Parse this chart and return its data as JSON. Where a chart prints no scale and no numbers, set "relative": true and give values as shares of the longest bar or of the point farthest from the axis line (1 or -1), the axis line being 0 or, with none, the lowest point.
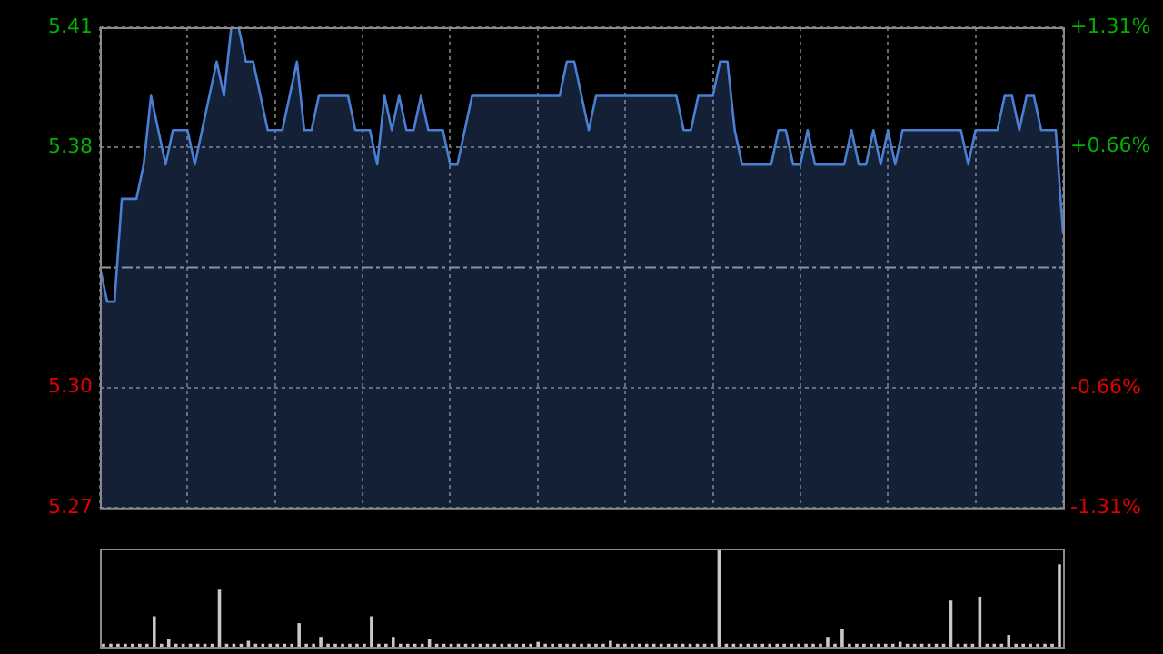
{
  "chart_data": [
    {
      "type": "area",
      "categories": [
        null,
        null,
        null,
        null,
        null,
        null,
        null,
        null,
        null,
        null,
        null,
        null,
        null,
        null,
        null,
        null,
        null,
        null,
        null,
        null,
        null,
        null,
        null,
        null,
        null,
        null,
        null,
        null,
        null,
        null,
        null,
        null,
        null,
        null,
        null,
        null,
        null,
        null,
        null,
        null,
        null,
        null,
        null,
        null,
        null,
        null,
        null,
        null,
        null,
        null,
        null,
        null,
        null,
        null,
        null,
        null,
        null,
        null,
        null,
        null,
        null,
        null,
        null,
        null,
        null,
        null,
        null,
        null,
        null,
        null,
        null,
        null,
        null,
        null,
        null,
        null,
        null,
        null,
        null,
        null,
        null,
        null,
        null,
        null,
        null,
        null,
        null,
        null,
        null,
        null,
        null,
        null,
        null,
        null,
        null,
        null,
        null,
        null,
        null,
        null,
        null,
        null,
        null,
        null,
        null,
        null,
        null,
        null,
        null,
        null,
        null,
        null,
        null,
        null,
        null,
        null,
        null,
        null,
        null,
        null,
        null,
        null,
        null,
        null,
        null,
        null,
        null,
        null,
        null,
        null,
        null,
        null,
        null
      ],
      "series": [
        {
          "color": "#4a7fd4",
          "values": [
            5.34,
            5.33,
            5.33,
            5.36,
            5.36,
            5.36,
            5.37,
            5.39,
            5.38,
            5.37,
            5.38,
            5.38,
            5.38,
            5.37,
            5.38,
            5.39,
            5.4,
            5.39,
            5.41,
            5.41,
            5.4,
            5.4,
            5.39,
            5.38,
            5.38,
            5.38,
            5.39,
            5.4,
            5.38,
            5.38,
            5.39,
            5.39,
            5.39,
            5.39,
            5.39,
            5.38,
            5.38,
            5.38,
            5.37,
            5.39,
            5.38,
            5.39,
            5.38,
            5.38,
            5.39,
            5.38,
            5.38,
            5.38,
            5.37,
            5.37,
            5.38,
            5.39,
            5.39,
            5.39,
            5.39,
            5.39,
            5.39,
            5.39,
            5.39,
            5.39,
            5.39,
            5.39,
            5.39,
            5.39,
            5.4,
            5.4,
            5.39,
            5.38,
            5.39,
            5.39,
            5.39,
            5.39,
            5.39,
            5.39,
            5.39,
            5.39,
            5.39,
            5.39,
            5.39,
            5.39,
            5.38,
            5.38,
            5.39,
            5.39,
            5.39,
            5.4,
            5.4,
            5.38,
            5.37,
            5.37,
            5.37,
            5.37,
            5.37,
            5.38,
            5.38,
            5.37,
            5.37,
            5.38,
            5.37,
            5.37,
            5.37,
            5.37,
            5.37,
            5.38,
            5.37,
            5.37,
            5.38,
            5.37,
            5.38,
            5.37,
            5.38,
            5.38,
            5.38,
            5.38,
            5.38,
            5.38,
            5.38,
            5.38,
            5.38,
            5.37,
            5.38,
            5.38,
            5.38,
            5.38,
            5.39,
            5.39,
            5.38,
            5.39,
            5.39,
            5.38,
            5.38,
            5.38,
            5.35
          ]
        }
      ],
      "ylim": [
        5.27,
        5.41
      ],
      "yticks": [
        5.41,
        {
          "value": 5.375,
          "label": "5.38"
        },
        {
          "value": 5.305,
          "label": "5.30"
        },
        5.27
      ],
      "y2lim": [
        -1.31,
        1.31
      ],
      "y2ticks": [
        {
          "value": 1.31,
          "label": "+1.31%"
        },
        {
          "value": 0.66,
          "label": "+0.66%"
        },
        {
          "value": -0.66,
          "label": "-0.66%"
        },
        {
          "value": -1.31,
          "label": "-1.31%"
        }
      ],
      "grid": true,
      "ref_lines": [
        {
          "axis": "y",
          "value": 5.34,
          "color": "#9a9a9a",
          "line_style": "dashed"
        }
      ]
    },
    {
      "type": "bar",
      "relative": true,
      "color": "#c8c8c8",
      "categories": [
        null,
        null,
        null,
        null,
        null,
        null,
        null,
        null,
        null,
        null,
        null,
        null,
        null,
        null,
        null,
        null,
        null,
        null,
        null,
        null,
        null,
        null,
        null,
        null,
        null,
        null,
        null,
        null,
        null,
        null,
        null,
        null,
        null,
        null,
        null,
        null,
        null,
        null,
        null,
        null,
        null,
        null,
        null,
        null,
        null,
        null,
        null,
        null,
        null,
        null,
        null,
        null,
        null,
        null,
        null,
        null,
        null,
        null,
        null,
        null,
        null,
        null,
        null,
        null,
        null,
        null,
        null,
        null,
        null,
        null,
        null,
        null,
        null,
        null,
        null,
        null,
        null,
        null,
        null,
        null,
        null,
        null,
        null,
        null,
        null,
        null,
        null,
        null,
        null,
        null,
        null,
        null,
        null,
        null,
        null,
        null,
        null,
        null,
        null,
        null,
        null,
        null,
        null,
        null,
        null,
        null,
        null,
        null,
        null,
        null,
        null,
        null,
        null,
        null,
        null,
        null,
        null,
        null,
        null,
        null,
        null,
        null,
        null,
        null,
        null,
        null,
        null,
        null,
        null,
        null,
        null,
        null,
        null
      ],
      "values": [
        0.03,
        0.03,
        0.03,
        0.03,
        0.03,
        0.03,
        0.03,
        0.31,
        0.03,
        0.08,
        0.03,
        0.03,
        0.03,
        0.03,
        0.03,
        0.03,
        0.59,
        0.03,
        0.03,
        0.03,
        0.06,
        0.03,
        0.03,
        0.03,
        0.03,
        0.03,
        0.03,
        0.24,
        0.03,
        0.03,
        0.1,
        0.03,
        0.03,
        0.03,
        0.03,
        0.03,
        0.03,
        0.31,
        0.03,
        0.03,
        0.1,
        0.03,
        0.03,
        0.03,
        0.03,
        0.08,
        0.03,
        0.03,
        0.03,
        0.03,
        0.03,
        0.03,
        0.03,
        0.03,
        0.03,
        0.03,
        0.03,
        0.03,
        0.03,
        0.03,
        0.05,
        0.03,
        0.03,
        0.03,
        0.03,
        0.03,
        0.03,
        0.03,
        0.03,
        0.03,
        0.06,
        0.03,
        0.03,
        0.03,
        0.03,
        0.03,
        0.03,
        0.03,
        0.03,
        0.03,
        0.03,
        0.03,
        0.03,
        0.03,
        0.03,
        1,
        0.03,
        0.03,
        0.03,
        0.03,
        0.03,
        0.03,
        0.03,
        0.03,
        0.03,
        0.03,
        0.03,
        0.03,
        0.03,
        0.03,
        0.1,
        0.03,
        0.18,
        0.03,
        0.03,
        0.03,
        0.03,
        0.03,
        0.03,
        0.03,
        0.05,
        0.03,
        0.03,
        0.03,
        0.03,
        0.03,
        0.03,
        0.47,
        0.03,
        0.03,
        0.03,
        0.51,
        0.03,
        0.03,
        0.03,
        0.12,
        0.03,
        0.03,
        0.03,
        0.03,
        0.03,
        0.03,
        0.84
      ]
    }
  ]
}
